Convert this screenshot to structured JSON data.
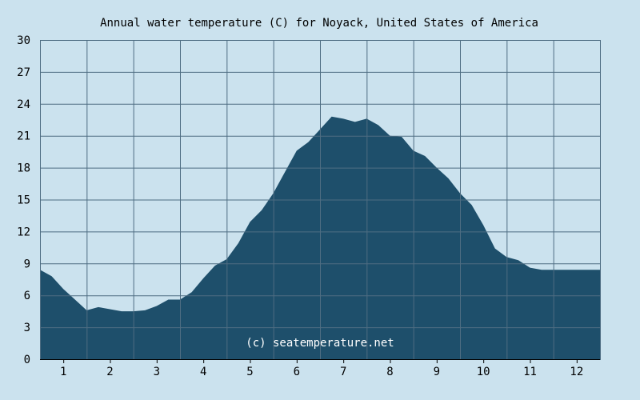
{
  "chart_data": {
    "type": "area",
    "title": "Annual water temperature (C) for Noyack, United States of America",
    "xlabel": "",
    "ylabel": "",
    "ylim": [
      0,
      30
    ],
    "xlim": [
      0.5,
      12.5
    ],
    "yticks": [
      0,
      3,
      6,
      9,
      12,
      15,
      18,
      21,
      24,
      27,
      30
    ],
    "xticks": [
      1,
      2,
      3,
      4,
      5,
      6,
      7,
      8,
      9,
      10,
      11,
      12
    ],
    "grid": true,
    "credit": "(c) seatemperature.net",
    "colors": {
      "background": "#cbe2ee",
      "fill": "#1e4f6b",
      "grid": "#4e6d82",
      "axis": "#000000"
    },
    "series": [
      {
        "x": [
          0.5,
          0.75,
          1.0,
          1.25,
          1.5,
          1.75,
          2.0,
          2.25,
          2.5,
          2.75,
          3.0,
          3.25,
          3.5,
          3.75,
          4.0,
          4.25,
          4.5,
          4.75,
          5.0,
          5.25,
          5.5,
          5.75,
          6.0,
          6.25,
          6.5,
          6.75,
          7.0,
          7.25,
          7.5,
          7.75,
          8.0,
          8.25,
          8.5,
          8.75,
          9.0,
          9.25,
          9.5,
          9.75,
          10.0,
          10.25,
          10.5,
          10.75,
          11.0,
          11.25,
          11.5,
          11.75,
          12.0,
          12.25,
          12.5
        ],
        "values": [
          8.4,
          7.8,
          6.6,
          5.6,
          4.6,
          4.9,
          4.7,
          4.5,
          4.5,
          4.6,
          5.0,
          5.6,
          5.6,
          6.3,
          7.6,
          8.8,
          9.4,
          10.9,
          12.9,
          14.0,
          15.6,
          17.6,
          19.6,
          20.4,
          21.6,
          22.8,
          22.6,
          22.3,
          22.6,
          22.0,
          21.0,
          20.9,
          19.6,
          19.1,
          18.0,
          17.0,
          15.6,
          14.5,
          12.6,
          10.4,
          9.6,
          9.3,
          8.6,
          8.4,
          8.4,
          8.4,
          8.4,
          8.4,
          8.4
        ]
      }
    ]
  }
}
